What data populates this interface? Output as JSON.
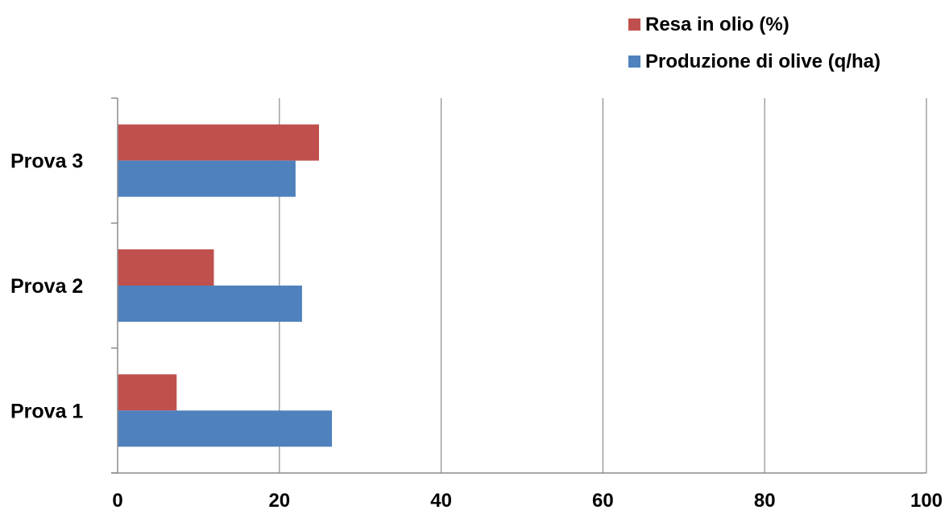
{
  "chart_data": {
    "type": "bar",
    "orientation": "horizontal",
    "categories": [
      "Prova 1",
      "Prova 2",
      "Prova 3"
    ],
    "series": [
      {
        "name": "Produzione di olive (q/ha)",
        "values": [
          26.5,
          22.8,
          22
        ],
        "color": "#4F81BD"
      },
      {
        "name": "Resa in olio (%)",
        "values": [
          7.3,
          11.9,
          24.9
        ],
        "color": "#C0504D"
      }
    ],
    "x_ticks": [
      "0",
      "20",
      "40",
      "60",
      "80",
      "100"
    ],
    "xlim": [
      0,
      100
    ],
    "xlabel": "",
    "ylabel": "",
    "title": "",
    "grid": "vertical",
    "legend_position": "top-right"
  }
}
